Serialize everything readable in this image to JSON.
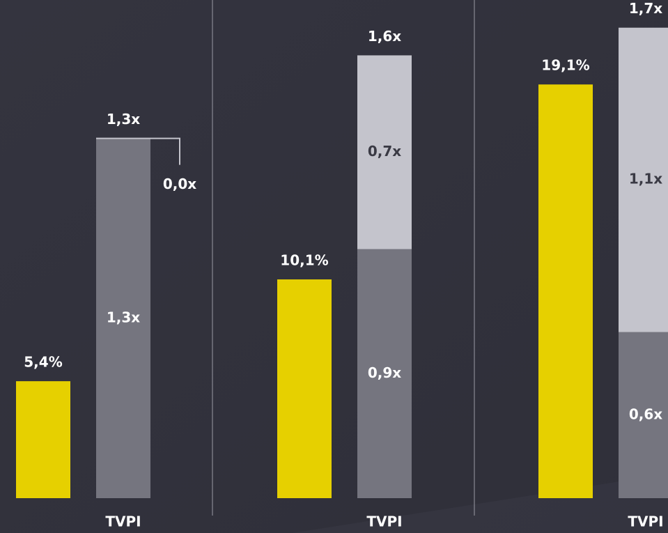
{
  "chart_data": [
    {
      "type": "bar",
      "categories": [
        null,
        "TVPI"
      ],
      "ylim": [
        0,
        23
      ],
      "y2lim": [
        0,
        1.8
      ],
      "series": [
        {
          "color": "#e6d000",
          "values": [
            5.4,
            null
          ],
          "value_labels": [
            "5,4%",
            null
          ]
        },
        {
          "color": "#75757f",
          "axis": "y2",
          "values": [
            null,
            1.3
          ],
          "value_labels": [
            null,
            "1,3x"
          ]
        },
        {
          "color": "#c4c4cc",
          "axis": "y2",
          "values": [
            null,
            0.0
          ],
          "value_labels": [
            null,
            "0,0x"
          ]
        }
      ],
      "total": 1.3,
      "total_label": "1,3x"
    },
    {
      "type": "bar",
      "categories": [
        null,
        "TVPI"
      ],
      "ylim": [
        0,
        23
      ],
      "y2lim": [
        0,
        1.8
      ],
      "series": [
        {
          "color": "#e6d000",
          "values": [
            10.1,
            null
          ],
          "value_labels": [
            "10,1%",
            null
          ]
        },
        {
          "color": "#75757f",
          "axis": "y2",
          "values": [
            null,
            0.9
          ],
          "value_labels": [
            null,
            "0,9x"
          ]
        },
        {
          "color": "#c4c4cc",
          "axis": "y2",
          "values": [
            null,
            0.7
          ],
          "value_labels": [
            null,
            "0,7x"
          ]
        }
      ],
      "total": 1.6,
      "total_label": "1,6x"
    },
    {
      "type": "bar",
      "categories": [
        null,
        "TVPI"
      ],
      "ylim": [
        0,
        23
      ],
      "y2lim": [
        0,
        1.8
      ],
      "series": [
        {
          "color": "#e6d000",
          "values": [
            19.1,
            null
          ],
          "value_labels": [
            "19,1%",
            null
          ]
        },
        {
          "color": "#75757f",
          "axis": "y2",
          "values": [
            null,
            0.6
          ],
          "value_labels": [
            null,
            "0,6x"
          ]
        },
        {
          "color": "#c4c4cc",
          "axis": "y2",
          "values": [
            null,
            1.1
          ],
          "value_labels": [
            null,
            "1,1x"
          ]
        }
      ],
      "total": 1.7,
      "total_label": "1,7x"
    }
  ]
}
